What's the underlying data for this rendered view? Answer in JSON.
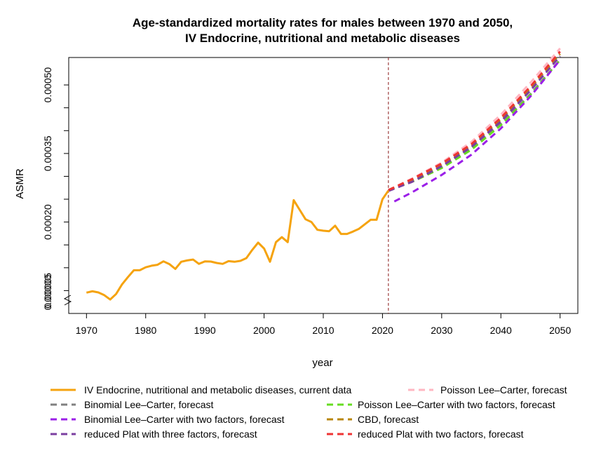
{
  "chart_data": {
    "type": "line",
    "title": "Age-standardized mortality rates for males between 1970 and 2050,",
    "subtitle": "IV Endocrine, nutritional and metabolic diseases",
    "xlabel": "year",
    "ylabel": "ASMR",
    "xlim": [
      1967,
      2053
    ],
    "ylim": [
      0.0,
      0.00056
    ],
    "x_ticks": [
      1970,
      1980,
      1990,
      2000,
      2010,
      2020,
      2030,
      2040,
      2050
    ],
    "y_ticks": [
      {
        "value": 5e-05,
        "label": "0.00005"
      },
      {
        "value": 0.0002,
        "label": "0.00020"
      },
      {
        "value": 0.00035,
        "label": "0.00035"
      },
      {
        "value": 0.0005,
        "label": "0.00050"
      }
    ],
    "y_minor_ticks": [
      0.0001,
      0.00015,
      0.00025,
      0.0003,
      0.0004,
      0.00045
    ],
    "y_break_label": "0.00000",
    "vline_x": 2021,
    "legend_position": "bottom",
    "series": [
      {
        "name": "IV Endocrine, nutritional and metabolic diseases, current data",
        "color": "#f5a30f",
        "dash": "solid",
        "x": [
          1970,
          1971,
          1972,
          1973,
          1974,
          1975,
          1976,
          1977,
          1978,
          1979,
          1980,
          1981,
          1982,
          1983,
          1984,
          1985,
          1986,
          1987,
          1988,
          1989,
          1990,
          1991,
          1992,
          1993,
          1994,
          1995,
          1996,
          1997,
          1998,
          1999,
          2000,
          2001,
          2002,
          2003,
          2004,
          2005,
          2006,
          2007,
          2008,
          2009,
          2010,
          2011,
          2012,
          2013,
          2014,
          2015,
          2016,
          2017,
          2018,
          2019,
          2020,
          2021
        ],
        "y": [
          4.55e-05,
          4.85e-05,
          4.6e-05,
          4e-05,
          3.05e-05,
          4.25e-05,
          6.35e-05,
          7.95e-05,
          9.45e-05,
          9.45e-05,
          0.000101,
          0.0001045,
          0.0001065,
          0.000114,
          0.000108,
          9.75e-05,
          0.000113,
          0.000116,
          0.000118,
          0.0001085,
          0.000114,
          0.0001135,
          0.0001105,
          0.0001085,
          0.0001145,
          0.000113,
          0.000115,
          0.000121,
          0.000139,
          0.000155,
          0.000142,
          0.000113,
          0.000156,
          0.000167,
          0.000156,
          0.000248,
          0.000227,
          0.000206,
          0.0002,
          0.000183,
          0.000181,
          0.00018,
          0.000192,
          0.000174,
          0.000174,
          0.000179,
          0.000185,
          0.000195,
          0.000205,
          0.000205,
          0.00025,
          0.000269
        ]
      },
      {
        "name": "Poisson Lee–Carter, forecast",
        "color": "#ffb6c1",
        "dash": "dashed",
        "x": [
          2021,
          2025,
          2030,
          2035,
          2040,
          2045,
          2050
        ],
        "y": [
          0.00027,
          0.000295,
          0.00033,
          0.000375,
          0.000435,
          0.000505,
          0.00058
        ]
      },
      {
        "name": "Binomial Lee–Carter, forecast",
        "color": "#808080",
        "dash": "dashed",
        "x": [
          2021,
          2025,
          2030,
          2035,
          2040,
          2045,
          2050
        ],
        "y": [
          0.00027,
          0.00029,
          0.00032,
          0.00036,
          0.000415,
          0.00048,
          0.000555
        ]
      },
      {
        "name": "Poisson Lee–Carter with two factors, forecast",
        "color": "#66dd22",
        "dash": "dashed",
        "x": [
          2021,
          2025,
          2030,
          2035,
          2040,
          2045,
          2050
        ],
        "y": [
          0.00027,
          0.000288,
          0.000318,
          0.000358,
          0.000412,
          0.000478,
          0.000555
        ]
      },
      {
        "name": "Binomial Lee–Carter with two factors, forecast",
        "color": "#9b1fe8",
        "dash": "dashed",
        "x": [
          2022,
          2025,
          2030,
          2035,
          2040,
          2045,
          2050
        ],
        "y": [
          0.000245,
          0.000265,
          0.000303,
          0.000347,
          0.000405,
          0.000475,
          0.000555
        ]
      },
      {
        "name": "CBD, forecast",
        "color": "#b8860b",
        "dash": "dashed",
        "x": [
          2021,
          2025,
          2030,
          2035,
          2040,
          2045,
          2050
        ],
        "y": [
          0.00027,
          0.000292,
          0.000325,
          0.000367,
          0.000424,
          0.000493,
          0.000568
        ]
      },
      {
        "name": "reduced Plat with three factors, forecast",
        "color": "#7b3fa0",
        "dash": "dashed",
        "x": [
          2021,
          2025,
          2030,
          2035,
          2040,
          2045,
          2050
        ],
        "y": [
          0.000268,
          0.000288,
          0.000322,
          0.000364,
          0.00042,
          0.000488,
          0.000563
        ]
      },
      {
        "name": "reduced Plat with two factors, forecast",
        "color": "#ee3333",
        "dash": "dashed",
        "x": [
          2021,
          2025,
          2030,
          2035,
          2040,
          2045,
          2050
        ],
        "y": [
          0.00027,
          0.000294,
          0.000328,
          0.00037,
          0.000428,
          0.000497,
          0.000573
        ]
      }
    ]
  }
}
